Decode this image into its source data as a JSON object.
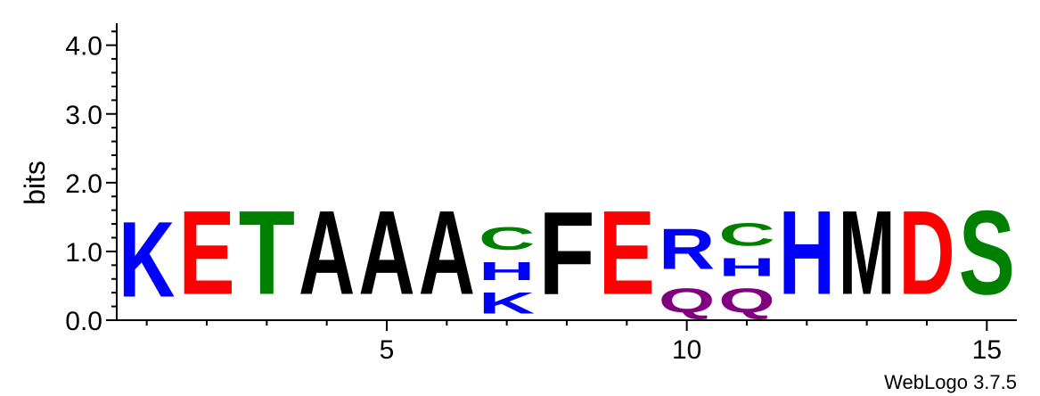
{
  "chart_data": {
    "type": "sequence-logo",
    "ylabel": "bits",
    "ylim": [
      0,
      4.32
    ],
    "y_ticks": [
      "0.0",
      "1.0",
      "2.0",
      "3.0",
      "4.0"
    ],
    "x_range": [
      0.5,
      15.5
    ],
    "x_tick_labels": [
      "5",
      "10",
      "15"
    ],
    "credit": "WebLogo 3.7.5",
    "colors": {
      "blue": "#0000ff",
      "red": "#ff0000",
      "green": "#008000",
      "black": "#000000",
      "purple": "#800080"
    },
    "positions": [
      {
        "position": 1,
        "stack": [
          {
            "letter": "K",
            "bits": 1.75,
            "color": "blue"
          }
        ]
      },
      {
        "position": 2,
        "stack": [
          {
            "letter": "E",
            "bits": 1.95,
            "color": "red"
          }
        ]
      },
      {
        "position": 3,
        "stack": [
          {
            "letter": "T",
            "bits": 1.95,
            "color": "green"
          }
        ]
      },
      {
        "position": 4,
        "stack": [
          {
            "letter": "A",
            "bits": 1.95,
            "color": "black"
          }
        ]
      },
      {
        "position": 5,
        "stack": [
          {
            "letter": "A",
            "bits": 1.95,
            "color": "black"
          }
        ]
      },
      {
        "position": 6,
        "stack": [
          {
            "letter": "A",
            "bits": 1.95,
            "color": "black"
          }
        ]
      },
      {
        "position": 7,
        "stack": [
          {
            "letter": "K",
            "bits": 0.5,
            "color": "blue"
          },
          {
            "letter": "H",
            "bits": 0.42,
            "color": "blue"
          },
          {
            "letter": "C",
            "bits": 0.52,
            "color": "green"
          }
        ]
      },
      {
        "position": 8,
        "stack": [
          {
            "letter": "F",
            "bits": 1.93,
            "color": "black"
          }
        ]
      },
      {
        "position": 9,
        "stack": [
          {
            "letter": "E",
            "bits": 1.95,
            "color": "red"
          }
        ]
      },
      {
        "position": 10,
        "stack": [
          {
            "letter": "Q",
            "bits": 0.56,
            "color": "purple"
          },
          {
            "letter": "R",
            "bits": 0.94,
            "color": "blue"
          }
        ]
      },
      {
        "position": 11,
        "stack": [
          {
            "letter": "Q",
            "bits": 0.56,
            "color": "purple"
          },
          {
            "letter": "H",
            "bits": 0.42,
            "color": "blue"
          },
          {
            "letter": "C",
            "bits": 0.52,
            "color": "green"
          }
        ]
      },
      {
        "position": 12,
        "stack": [
          {
            "letter": "H",
            "bits": 1.95,
            "color": "blue"
          }
        ]
      },
      {
        "position": 13,
        "stack": [
          {
            "letter": "M",
            "bits": 1.95,
            "color": "black"
          }
        ]
      },
      {
        "position": 14,
        "stack": [
          {
            "letter": "D",
            "bits": 1.95,
            "color": "red"
          }
        ]
      },
      {
        "position": 15,
        "stack": [
          {
            "letter": "S",
            "bits": 1.95,
            "color": "green"
          }
        ]
      }
    ]
  }
}
